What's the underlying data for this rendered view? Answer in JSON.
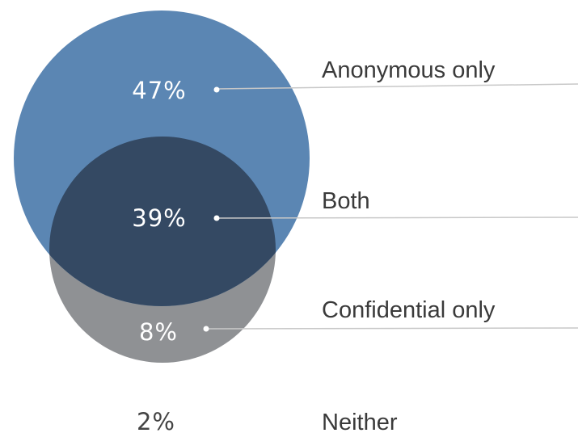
{
  "segments": [
    {
      "key": "anonymous_only",
      "percent": "47%",
      "label": "Anonymous only",
      "value": 47
    },
    {
      "key": "both",
      "percent": "39%",
      "label": "Both",
      "value": 39
    },
    {
      "key": "confidential_only",
      "percent": "8%",
      "label": "Confidential only",
      "value": 8
    },
    {
      "key": "neither",
      "percent": "2%",
      "label": "Neither",
      "value": 2
    }
  ],
  "colors": {
    "anonymous_circle": "#5b86b3",
    "confidential_circle": "#8f9194",
    "overlap": "#344963",
    "percent_text_on_fill": "#ffffff",
    "percent_text_plain": "#444444",
    "label_text": "#3a3a3a",
    "leader_line": "#c8c8c8"
  }
}
